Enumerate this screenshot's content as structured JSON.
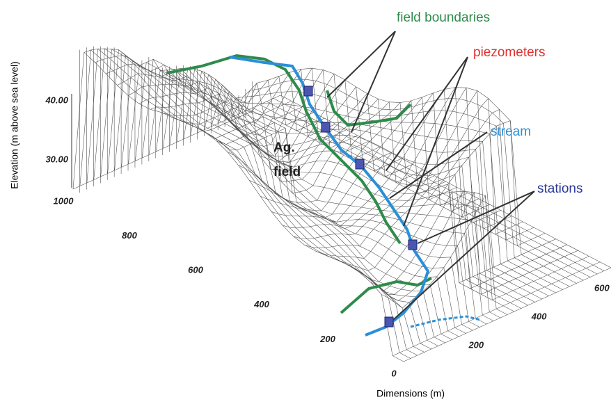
{
  "labels": {
    "field_boundaries": "field boundaries",
    "piezometers": "piezometers",
    "stream": "stream",
    "stations": "stations",
    "ag": "Ag.",
    "field": "field"
  },
  "axes": {
    "z_title": "Elevation (m above sea level)",
    "x_title": "Dimensions (m)",
    "z_ticks": [
      "40.00",
      "30.00"
    ],
    "left_ticks": [
      "1000",
      "800",
      "600",
      "400",
      "200",
      "0"
    ],
    "right_ticks": [
      "200",
      "400",
      "600"
    ]
  }
}
